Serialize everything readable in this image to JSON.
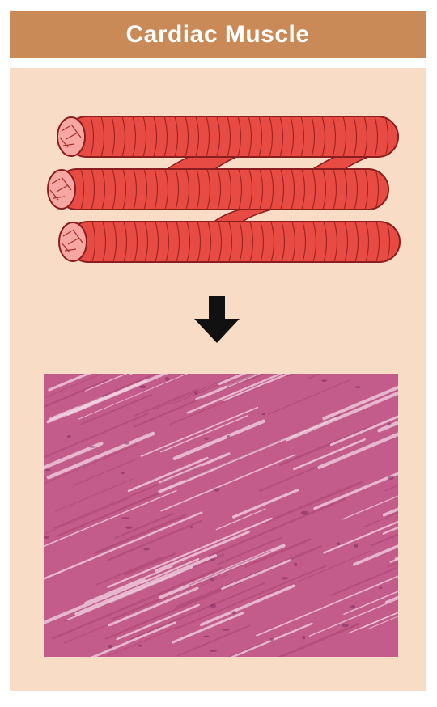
{
  "header": {
    "title": "Cardiac Muscle"
  },
  "colors": {
    "header_bg": "#c98a57",
    "panel_bg": "#f8dcc5",
    "fiber_red": "#e84b43",
    "fiber_outline": "#8a1e1e",
    "fiber_end": "#f6a7a4",
    "tissue_pink": "#c35c8a"
  },
  "icons": {
    "arrow": "arrow-down-icon"
  }
}
